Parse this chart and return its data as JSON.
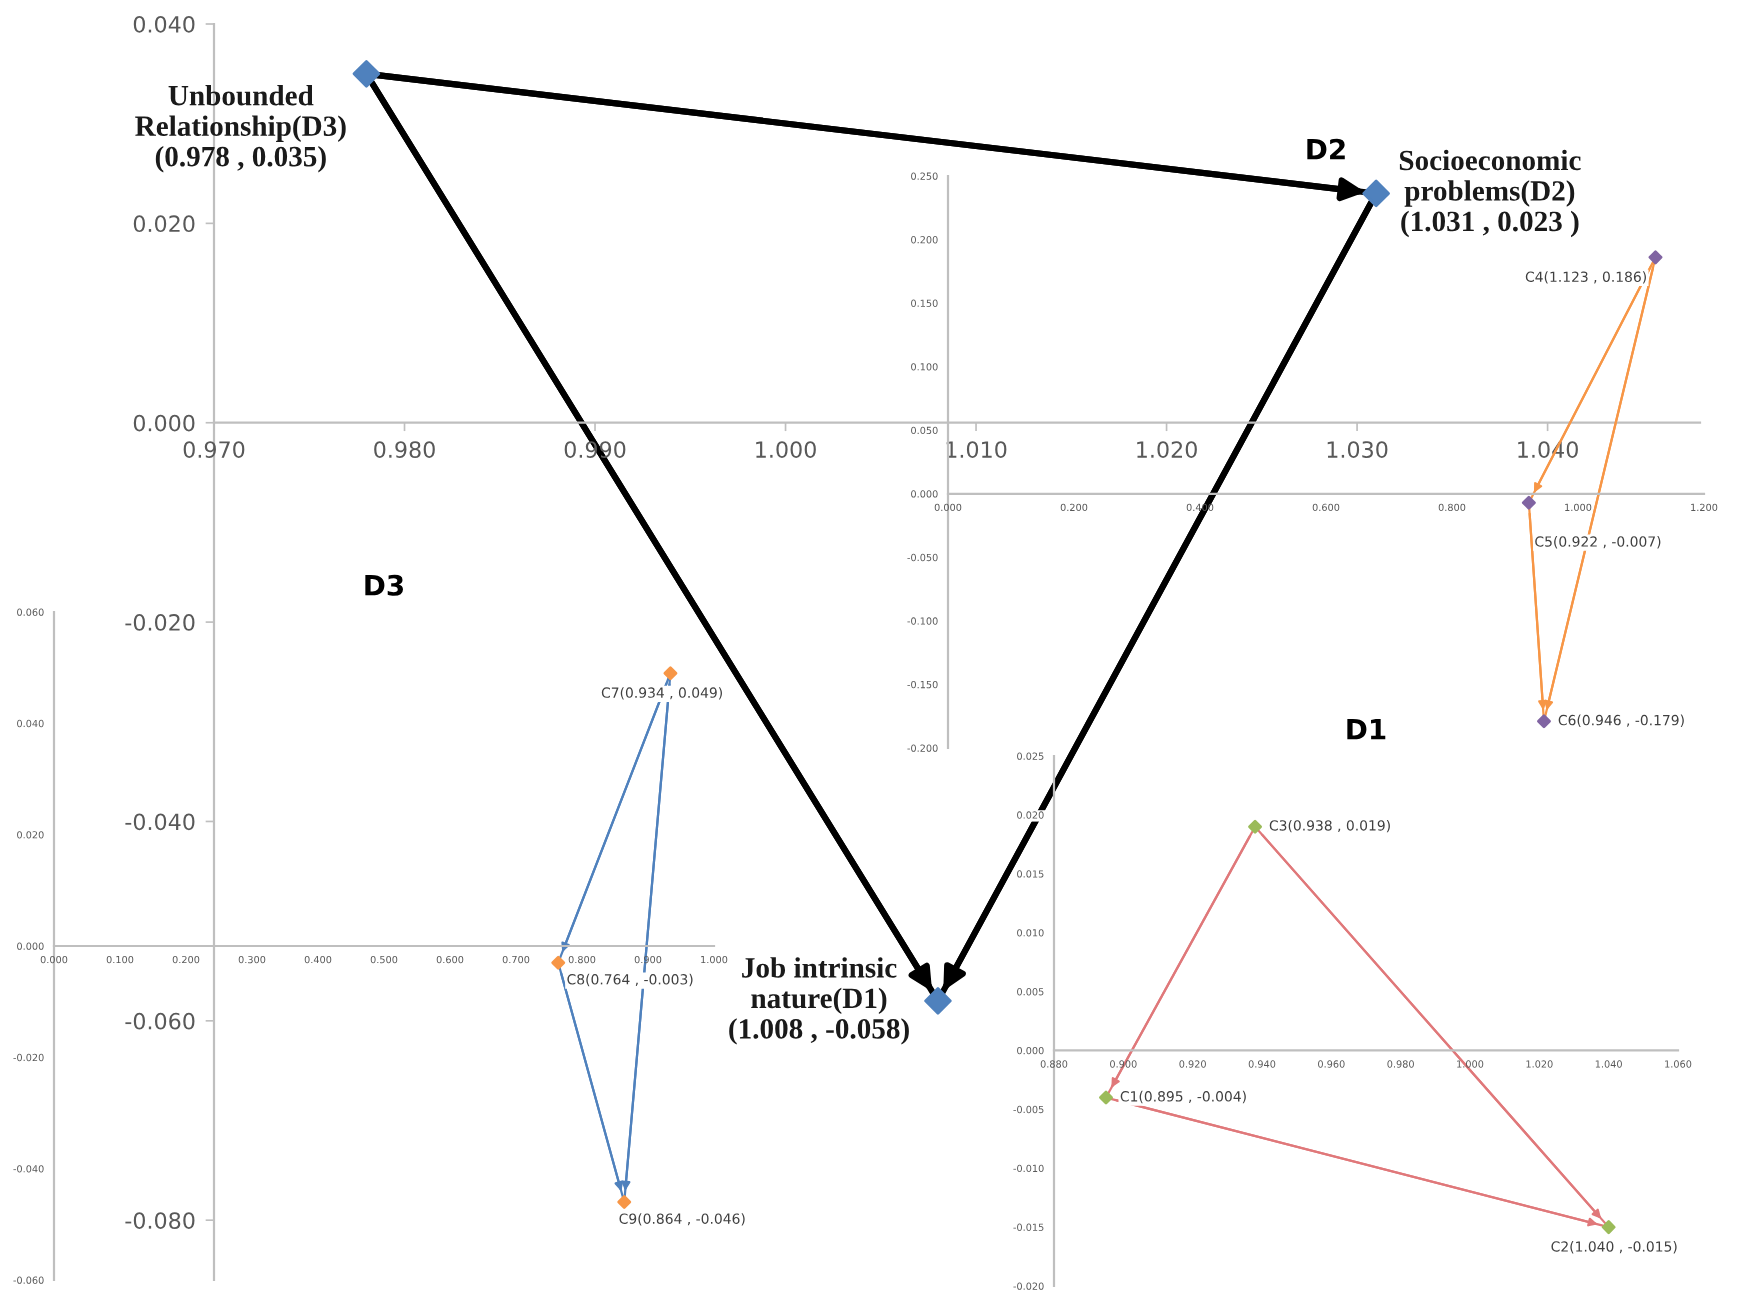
{
  "chart_data": [
    {
      "type": "scatter",
      "xlim": [
        0.97,
        1.048
      ],
      "ylim": [
        -0.086,
        0.04
      ],
      "xticks": [
        {
          "value": 0.97,
          "label": "0.970"
        },
        {
          "value": 0.98,
          "label": "0.980"
        },
        {
          "value": 0.99,
          "label": "0.990"
        },
        {
          "value": 1.0,
          "label": "1.000"
        },
        {
          "value": 1.01,
          "label": "1.010"
        },
        {
          "value": 1.02,
          "label": "1.020"
        },
        {
          "value": 1.03,
          "label": "1.030"
        },
        {
          "value": 1.04,
          "label": "1.040"
        }
      ],
      "yticks": [
        {
          "value": -0.08,
          "label": "-0.080"
        },
        {
          "value": -0.06,
          "label": "-0.060"
        },
        {
          "value": -0.04,
          "label": "-0.040"
        },
        {
          "value": -0.02,
          "label": "-0.020"
        },
        {
          "value": 0,
          "label": "0.000"
        },
        {
          "value": 0.02,
          "label": "0.020"
        },
        {
          "value": 0.04,
          "label": "0.040"
        }
      ],
      "series": [
        {
          "type": "line",
          "color": "#000000",
          "x": [
            0.978,
            1.031
          ],
          "values": [
            0.035,
            0.023
          ]
        },
        {
          "type": "line",
          "color": "#000000",
          "x": [
            0.978,
            1.008
          ],
          "values": [
            0.035,
            -0.058
          ]
        },
        {
          "type": "line",
          "color": "#000000",
          "x": [
            1.031,
            1.008
          ],
          "values": [
            0.023,
            -0.058
          ]
        },
        {
          "type": "scatter",
          "marker": "diamond",
          "color": "#4f81bd",
          "x": [
            0.978,
            1.031,
            1.008
          ],
          "values": [
            0.035,
            0.023,
            -0.058
          ]
        }
      ],
      "annotations": [
        {
          "text": "Unbounded\nRelationship(D3)\n(0.978 , 0.035)",
          "x": 0.978,
          "y": 0.035
        },
        {
          "text": "Socioeconomic\nproblems(D2)\n(1.031 , 0.023 )",
          "x": 1.031,
          "y": 0.023
        },
        {
          "text": "Job intrinsic\nnature(D1)\n(1.008 , -0.058)",
          "x": 1.008,
          "y": -0.058
        }
      ]
    },
    {
      "type": "scatter",
      "title": "D2",
      "xlim": [
        0,
        1.2
      ],
      "ylim": [
        -0.2,
        0.25
      ],
      "xticks": [
        {
          "value": 0,
          "label": "0.000"
        },
        {
          "value": 0.2,
          "label": "0.200"
        },
        {
          "value": 0.4,
          "label": "0.400"
        },
        {
          "value": 0.6,
          "label": "0.600"
        },
        {
          "value": 0.8,
          "label": "0.800"
        },
        {
          "value": 1.0,
          "label": "1.000"
        },
        {
          "value": 1.2,
          "label": "1.200"
        }
      ],
      "yticks": [
        {
          "value": -0.2,
          "label": "-0.200"
        },
        {
          "value": -0.15,
          "label": "-0.150"
        },
        {
          "value": -0.1,
          "label": "-0.100"
        },
        {
          "value": -0.05,
          "label": "-0.050"
        },
        {
          "value": 0,
          "label": "0.000"
        },
        {
          "value": 0.05,
          "label": "0.050"
        },
        {
          "value": 0.1,
          "label": "0.100"
        },
        {
          "value": 0.15,
          "label": "0.150"
        },
        {
          "value": 0.2,
          "label": "0.200"
        },
        {
          "value": 0.25,
          "label": "0.250"
        }
      ],
      "series": [
        {
          "type": "line",
          "color": "#f79646",
          "x": [
            1.123,
            0.922
          ],
          "values": [
            0.186,
            -0.007
          ]
        },
        {
          "type": "line",
          "color": "#f79646",
          "x": [
            1.123,
            0.946
          ],
          "values": [
            0.186,
            -0.179
          ]
        },
        {
          "type": "line",
          "color": "#f79646",
          "x": [
            0.922,
            0.946
          ],
          "values": [
            -0.007,
            -0.179
          ]
        },
        {
          "type": "scatter",
          "marker": "diamond",
          "color": "#8064a2",
          "x": [
            1.123,
            0.922,
            0.946
          ],
          "values": [
            0.186,
            -0.007,
            -0.179
          ]
        }
      ],
      "annotations": [
        {
          "text": "C4(1.123 , 0.186)",
          "x": 1.123,
          "y": 0.186
        },
        {
          "text": "C5(0.922 , -0.007)",
          "x": 0.922,
          "y": -0.007
        },
        {
          "text": "C6(0.946 , -0.179)",
          "x": 0.946,
          "y": -0.179
        }
      ]
    },
    {
      "type": "scatter",
      "title": "D3",
      "xlim": [
        0,
        1.0
      ],
      "ylim": [
        -0.06,
        0.06
      ],
      "xticks": [
        {
          "value": 0,
          "label": "0.000"
        },
        {
          "value": 0.1,
          "label": "0.100"
        },
        {
          "value": 0.2,
          "label": "0.200"
        },
        {
          "value": 0.3,
          "label": "0.300"
        },
        {
          "value": 0.4,
          "label": "0.400"
        },
        {
          "value": 0.5,
          "label": "0.500"
        },
        {
          "value": 0.6,
          "label": "0.600"
        },
        {
          "value": 0.7,
          "label": "0.700"
        },
        {
          "value": 0.8,
          "label": "0.800"
        },
        {
          "value": 0.9,
          "label": "0.900"
        },
        {
          "value": 1.0,
          "label": "1.000"
        }
      ],
      "yticks": [
        {
          "value": -0.06,
          "label": "-0.060"
        },
        {
          "value": -0.04,
          "label": "-0.040"
        },
        {
          "value": -0.02,
          "label": "-0.020"
        },
        {
          "value": 0,
          "label": "0.000"
        },
        {
          "value": 0.02,
          "label": "0.020"
        },
        {
          "value": 0.04,
          "label": "0.040"
        },
        {
          "value": 0.06,
          "label": "0.060"
        }
      ],
      "series": [
        {
          "type": "line",
          "color": "#4f81bd",
          "x": [
            0.934,
            0.764
          ],
          "values": [
            0.049,
            -0.003
          ]
        },
        {
          "type": "line",
          "color": "#4f81bd",
          "x": [
            0.934,
            0.864
          ],
          "values": [
            0.049,
            -0.046
          ]
        },
        {
          "type": "line",
          "color": "#4f81bd",
          "x": [
            0.764,
            0.864
          ],
          "values": [
            -0.003,
            -0.046
          ]
        },
        {
          "type": "scatter",
          "marker": "diamond",
          "color": "#f79646",
          "x": [
            0.934,
            0.764,
            0.864
          ],
          "values": [
            0.049,
            -0.003,
            -0.046
          ]
        }
      ],
      "annotations": [
        {
          "text": "C7(0.934 , 0.049)",
          "x": 0.934,
          "y": 0.049
        },
        {
          "text": "C8(0.764 , -0.003)",
          "x": 0.764,
          "y": -0.003
        },
        {
          "text": "C9(0.864 , -0.046)",
          "x": 0.864,
          "y": -0.046
        }
      ]
    },
    {
      "type": "scatter",
      "title": "D1",
      "xlim": [
        0.88,
        1.06
      ],
      "ylim": [
        -0.02,
        0.025
      ],
      "xticks": [
        {
          "value": 0.88,
          "label": "0.880"
        },
        {
          "value": 0.9,
          "label": "0.900"
        },
        {
          "value": 0.92,
          "label": "0.920"
        },
        {
          "value": 0.94,
          "label": "0.940"
        },
        {
          "value": 0.96,
          "label": "0.960"
        },
        {
          "value": 0.98,
          "label": "0.980"
        },
        {
          "value": 1.0,
          "label": "1.000"
        },
        {
          "value": 1.02,
          "label": "1.020"
        },
        {
          "value": 1.04,
          "label": "1.040"
        },
        {
          "value": 1.06,
          "label": "1.060"
        }
      ],
      "yticks": [
        {
          "value": -0.02,
          "label": "-0.020"
        },
        {
          "value": -0.015,
          "label": "-0.015"
        },
        {
          "value": -0.01,
          "label": "-0.010"
        },
        {
          "value": -0.005,
          "label": "-0.005"
        },
        {
          "value": 0,
          "label": "0.000"
        },
        {
          "value": 0.005,
          "label": "0.005"
        },
        {
          "value": 0.01,
          "label": "0.010"
        },
        {
          "value": 0.015,
          "label": "0.015"
        },
        {
          "value": 0.02,
          "label": "0.020"
        },
        {
          "value": 0.025,
          "label": "0.025"
        }
      ],
      "series": [
        {
          "type": "line",
          "color": "#e0787a",
          "x": [
            0.938,
            0.895
          ],
          "values": [
            0.019,
            -0.004
          ]
        },
        {
          "type": "line",
          "color": "#e0787a",
          "x": [
            0.938,
            1.04
          ],
          "values": [
            0.019,
            -0.015
          ]
        },
        {
          "type": "line",
          "color": "#e0787a",
          "x": [
            0.895,
            1.04
          ],
          "values": [
            -0.004,
            -0.015
          ]
        },
        {
          "type": "scatter",
          "marker": "diamond",
          "color": "#9bbb59",
          "x": [
            0.938,
            0.895,
            1.04
          ],
          "values": [
            0.019,
            -0.004,
            -0.015
          ]
        }
      ],
      "annotations": [
        {
          "text": "C3(0.938 , 0.019)",
          "x": 0.938,
          "y": 0.019
        },
        {
          "text": "C1(0.895 , -0.004)",
          "x": 0.895,
          "y": -0.004
        },
        {
          "text": "C2(1.040 , -0.015)",
          "x": 1.04,
          "y": -0.015
        }
      ]
    }
  ]
}
